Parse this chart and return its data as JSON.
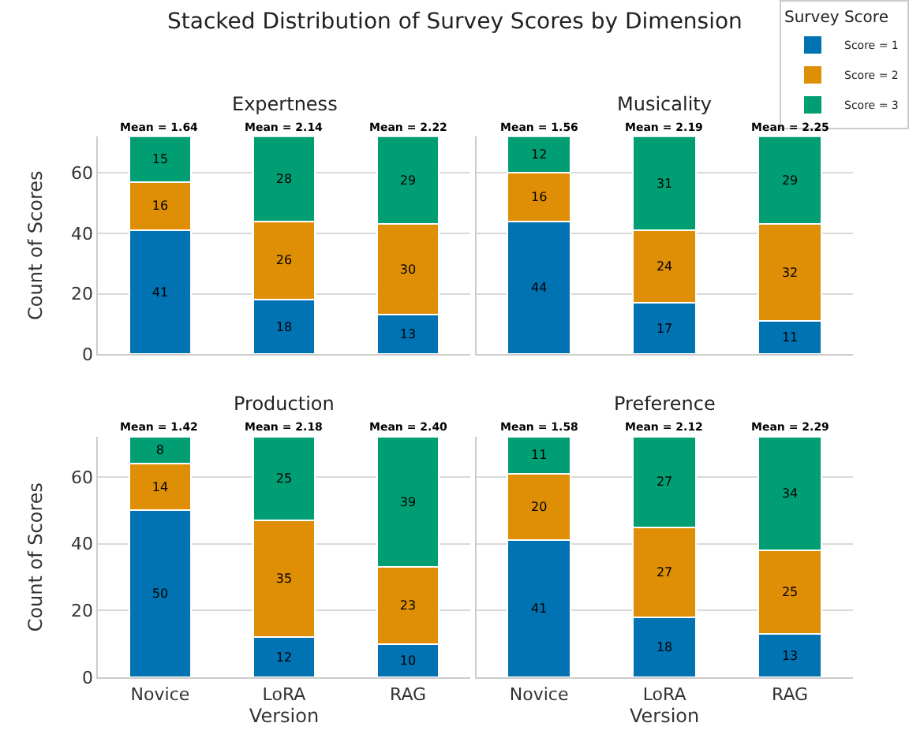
{
  "chart_data": [
    {
      "type": "bar",
      "stacked": true,
      "title": "Expertness",
      "ylabel": "Count of Scores",
      "categories": [
        "Novice",
        "LoRA",
        "RAG"
      ],
      "ylim": [
        0,
        72
      ],
      "yticks": [
        0,
        20,
        40,
        60
      ],
      "grid": "y",
      "tick_labels": "y",
      "data_labels": true,
      "legend": "top right",
      "legend_title": "Survey Score",
      "series": [
        {
          "name": "Score = 1",
          "color": "#0173b2",
          "values": [
            41,
            18,
            13
          ]
        },
        {
          "name": "Score = 2",
          "color": "#de8f05",
          "values": [
            16,
            26,
            30
          ]
        },
        {
          "name": "Score = 3",
          "color": "#029e73",
          "values": [
            15,
            28,
            29
          ]
        }
      ],
      "annotations": [
        "Stacked Distribution of Survey Scores by Dimension",
        {
          "text": "Mean = 1.64",
          "x": "Novice",
          "y": 72
        },
        {
          "text": "Mean = 2.14",
          "x": "LoRA",
          "y": 72
        },
        {
          "text": "Mean = 2.22",
          "x": "RAG",
          "y": 72
        }
      ]
    },
    {
      "type": "bar",
      "stacked": true,
      "title": "Musicality",
      "categories": [
        "Novice",
        "LoRA",
        "RAG"
      ],
      "ylim": [
        0,
        72
      ],
      "yticks": [
        0,
        20,
        40,
        60
      ],
      "grid": "y",
      "tick_labels": false,
      "data_labels": true,
      "series": [
        {
          "color": "#0173b2",
          "values": [
            44,
            17,
            11
          ]
        },
        {
          "color": "#de8f05",
          "values": [
            16,
            24,
            32
          ]
        },
        {
          "color": "#029e73",
          "values": [
            12,
            31,
            29
          ]
        }
      ],
      "annotations": [
        {
          "text": "Mean = 1.56",
          "x": "Novice",
          "y": 72
        },
        {
          "text": "Mean = 2.19",
          "x": "LoRA",
          "y": 72
        },
        {
          "text": "Mean = 2.25",
          "x": "RAG",
          "y": 72
        }
      ]
    },
    {
      "type": "bar",
      "stacked": true,
      "title": "Production",
      "xlabel": "Version",
      "ylabel": "Count of Scores",
      "categories": [
        "Novice",
        "LoRA",
        "RAG"
      ],
      "ylim": [
        0,
        72
      ],
      "yticks": [
        0,
        20,
        40,
        60
      ],
      "grid": "y",
      "data_labels": true,
      "series": [
        {
          "color": "#0173b2",
          "values": [
            50,
            12,
            10
          ]
        },
        {
          "color": "#de8f05",
          "values": [
            14,
            35,
            23
          ]
        },
        {
          "color": "#029e73",
          "values": [
            8,
            25,
            39
          ]
        }
      ],
      "annotations": [
        {
          "text": "Mean = 1.42",
          "x": "Novice",
          "y": 72
        },
        {
          "text": "Mean = 2.18",
          "x": "LoRA",
          "y": 72
        },
        {
          "text": "Mean = 2.40",
          "x": "RAG",
          "y": 72
        }
      ]
    },
    {
      "type": "bar",
      "stacked": true,
      "title": "Preference",
      "xlabel": "Version",
      "categories": [
        "Novice",
        "LoRA",
        "RAG"
      ],
      "ylim": [
        0,
        72
      ],
      "yticks": [
        0,
        20,
        40,
        60
      ],
      "grid": "y",
      "tick_labels": "x",
      "data_labels": true,
      "series": [
        {
          "color": "#0173b2",
          "values": [
            41,
            18,
            13
          ]
        },
        {
          "color": "#de8f05",
          "values": [
            20,
            27,
            25
          ]
        },
        {
          "color": "#029e73",
          "values": [
            11,
            27,
            34
          ]
        }
      ],
      "annotations": [
        {
          "text": "Mean = 1.58",
          "x": "Novice",
          "y": 72
        },
        {
          "text": "Mean = 2.12",
          "x": "LoRA",
          "y": 72
        },
        {
          "text": "Mean = 2.29",
          "x": "RAG",
          "y": 72
        }
      ]
    }
  ]
}
